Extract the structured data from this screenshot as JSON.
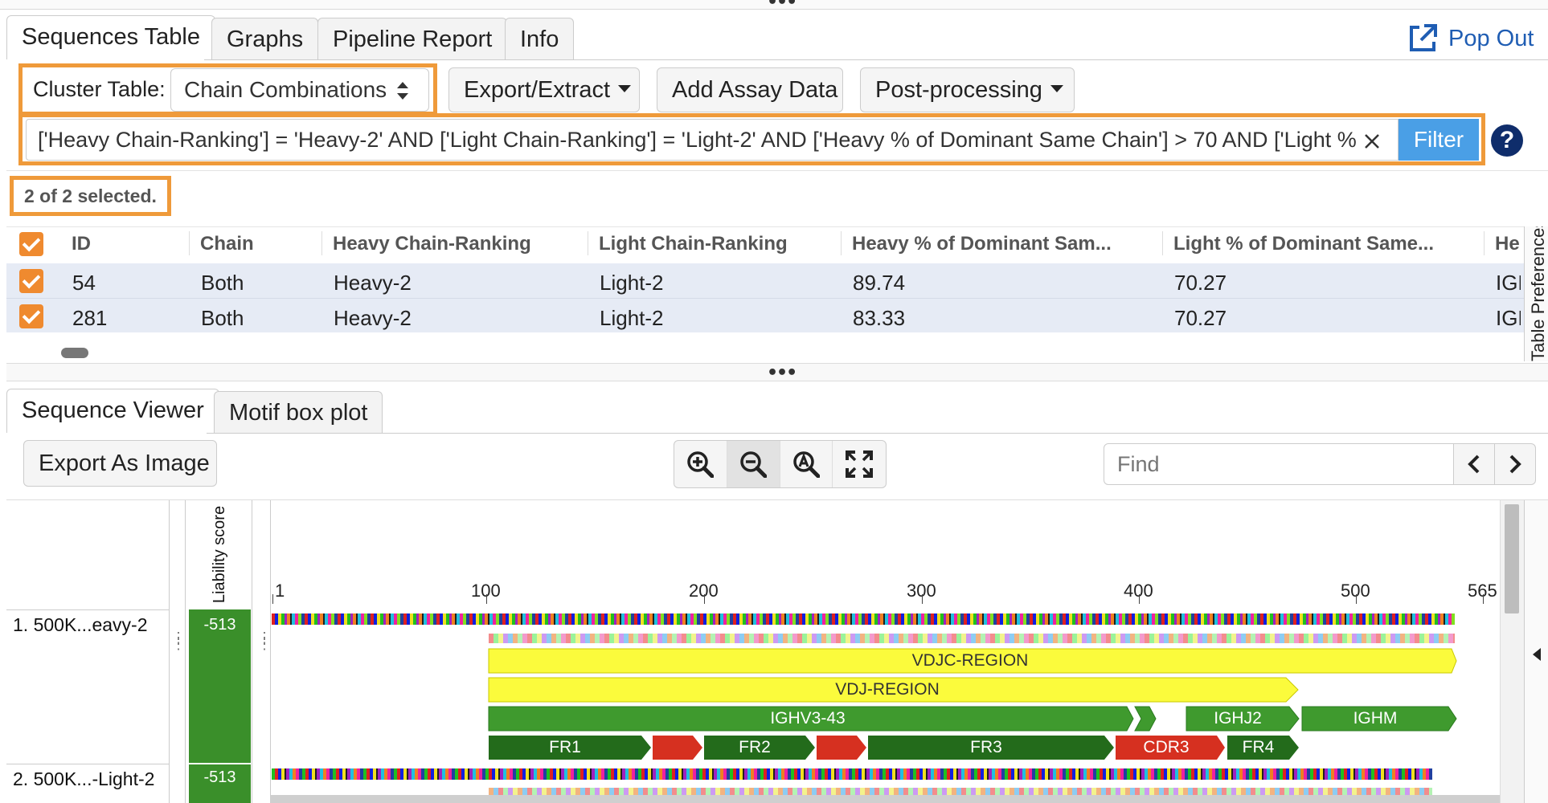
{
  "top_tabs": [
    {
      "label": "Sequences Table",
      "active": true
    },
    {
      "label": "Graphs",
      "active": false
    },
    {
      "label": "Pipeline Report",
      "active": false
    },
    {
      "label": "Info",
      "active": false
    }
  ],
  "pop_out_label": "Pop Out",
  "toolbar": {
    "cluster_label": "Cluster Table:",
    "cluster_value": "Chain Combinations",
    "export_extract": "Export/Extract",
    "add_assay": "Add Assay Data",
    "post_processing": "Post-processing"
  },
  "filter": {
    "value": "['Heavy Chain-Ranking'] = 'Heavy-2' AND ['Light Chain-Ranking'] = 'Light-2' AND ['Heavy % of Dominant Same Chain'] > 70 AND ['Light %",
    "button": "Filter",
    "help_glyph": "?"
  },
  "selection_status": "2 of 2 selected.",
  "table": {
    "headers": [
      "ID",
      "Chain",
      "Heavy Chain-Ranking",
      "Light Chain-Ranking",
      "Heavy % of Dominant Sam...",
      "Light % of Dominant Same...",
      "He"
    ],
    "rows": [
      [
        "54",
        "Both",
        "Heavy-2",
        "Light-2",
        "89.74",
        "70.27",
        "IGH"
      ],
      [
        "281",
        "Both",
        "Heavy-2",
        "Light-2",
        "83.33",
        "70.27",
        "IGH"
      ]
    ],
    "side_label": "Table Preferences"
  },
  "bottom_tabs": [
    {
      "label": "Sequence Viewer",
      "active": true
    },
    {
      "label": "Motif box plot",
      "active": false
    }
  ],
  "viewer": {
    "export_image": "Export As Image",
    "find_placeholder": "Find",
    "liability_label": "Liability score",
    "sequences": [
      {
        "name": "1. 500K...eavy-2",
        "score": "-513"
      },
      {
        "name": "2. 500K...-Light-2",
        "score": "-513"
      }
    ],
    "ruler": [
      "1",
      "100",
      "200",
      "300",
      "400",
      "500",
      "565"
    ],
    "annotations": {
      "vdjc": "VDJC-REGION",
      "vdj": "VDJ-REGION",
      "ighv": "IGHV3-43",
      "ighj": "IGHJ2",
      "ighm": "IGHM",
      "fr1": "FR1",
      "fr2": "FR2",
      "fr3": "FR3",
      "cdr3": "CDR3",
      "fr4": "FR4"
    },
    "colors": {
      "yellow": "#fbfb3c",
      "green": "#3f9a2e",
      "dark_green": "#236b1b",
      "red": "#d63020",
      "liability_green": "#3a8f2a"
    }
  }
}
